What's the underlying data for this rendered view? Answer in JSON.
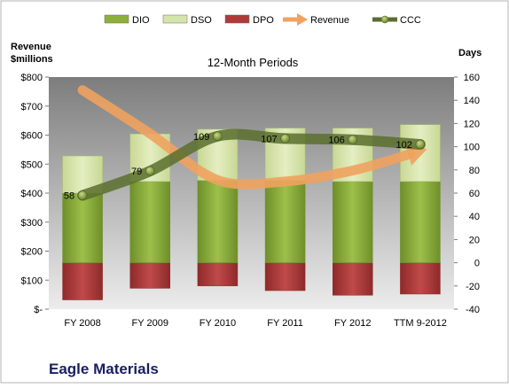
{
  "chart_data": {
    "type": "bar",
    "title": "12-Month Periods",
    "company": "Eagle Materials",
    "left_axis_label_line1": "Revenue",
    "left_axis_label_line2": "$millions",
    "right_axis_label": "Days",
    "categories": [
      "FY 2008",
      "FY 2009",
      "FY 2010",
      "FY 2011",
      "FY 2012",
      "TTM 9-2012"
    ],
    "left_ticks": [
      "$800",
      "$700",
      "$600",
      "$500",
      "$400",
      "$300",
      "$200",
      "$100",
      "$-"
    ],
    "right_ticks": [
      "160",
      "140",
      "120",
      "100",
      "80",
      "60",
      "40",
      "20",
      "0",
      "-20",
      "-40"
    ],
    "left_ylim": [
      0,
      800
    ],
    "right_ylim": [
      -40,
      160
    ],
    "series": [
      {
        "name": "DIO",
        "axis": "right",
        "type": "stacked-bar",
        "color": "#8db03c",
        "values": [
          60,
          70,
          71,
          71,
          70,
          70
        ]
      },
      {
        "name": "DSO",
        "axis": "right",
        "type": "stacked-bar",
        "color": "#d7e4a9",
        "values": [
          32,
          41,
          44,
          45,
          46,
          49
        ]
      },
      {
        "name": "DPO",
        "axis": "right",
        "type": "stacked-bar-negative",
        "color": "#b03a3a",
        "values": [
          -32,
          -22,
          -20,
          -24,
          -28,
          -27
        ]
      },
      {
        "name": "Revenue",
        "axis": "left",
        "type": "line",
        "color": "#f0a25e",
        "values": [
          755,
          605,
          445,
          440,
          478,
          545
        ]
      },
      {
        "name": "CCC",
        "axis": "right",
        "type": "line",
        "color": "#5a6e2e",
        "values": [
          58,
          79,
          109,
          107,
          106,
          102
        ]
      }
    ],
    "ccc_labels": [
      "58",
      "79",
      "109",
      "107",
      "106",
      "102"
    ],
    "legend": [
      {
        "name": "DIO",
        "shape": "box",
        "color": "#8db03c"
      },
      {
        "name": "DSO",
        "shape": "box",
        "color": "#d7e4a9"
      },
      {
        "name": "DPO",
        "shape": "box",
        "color": "#b03a3a"
      },
      {
        "name": "Revenue",
        "shape": "arrow",
        "color": "#f0a25e"
      },
      {
        "name": "CCC",
        "shape": "line-marker",
        "color": "#5a6e2e"
      }
    ],
    "legend_position": "top",
    "grid": false,
    "colors": {
      "plot_top": "#7d7d7d",
      "plot_bottom": "#ececec",
      "background": "#ffffff"
    }
  }
}
